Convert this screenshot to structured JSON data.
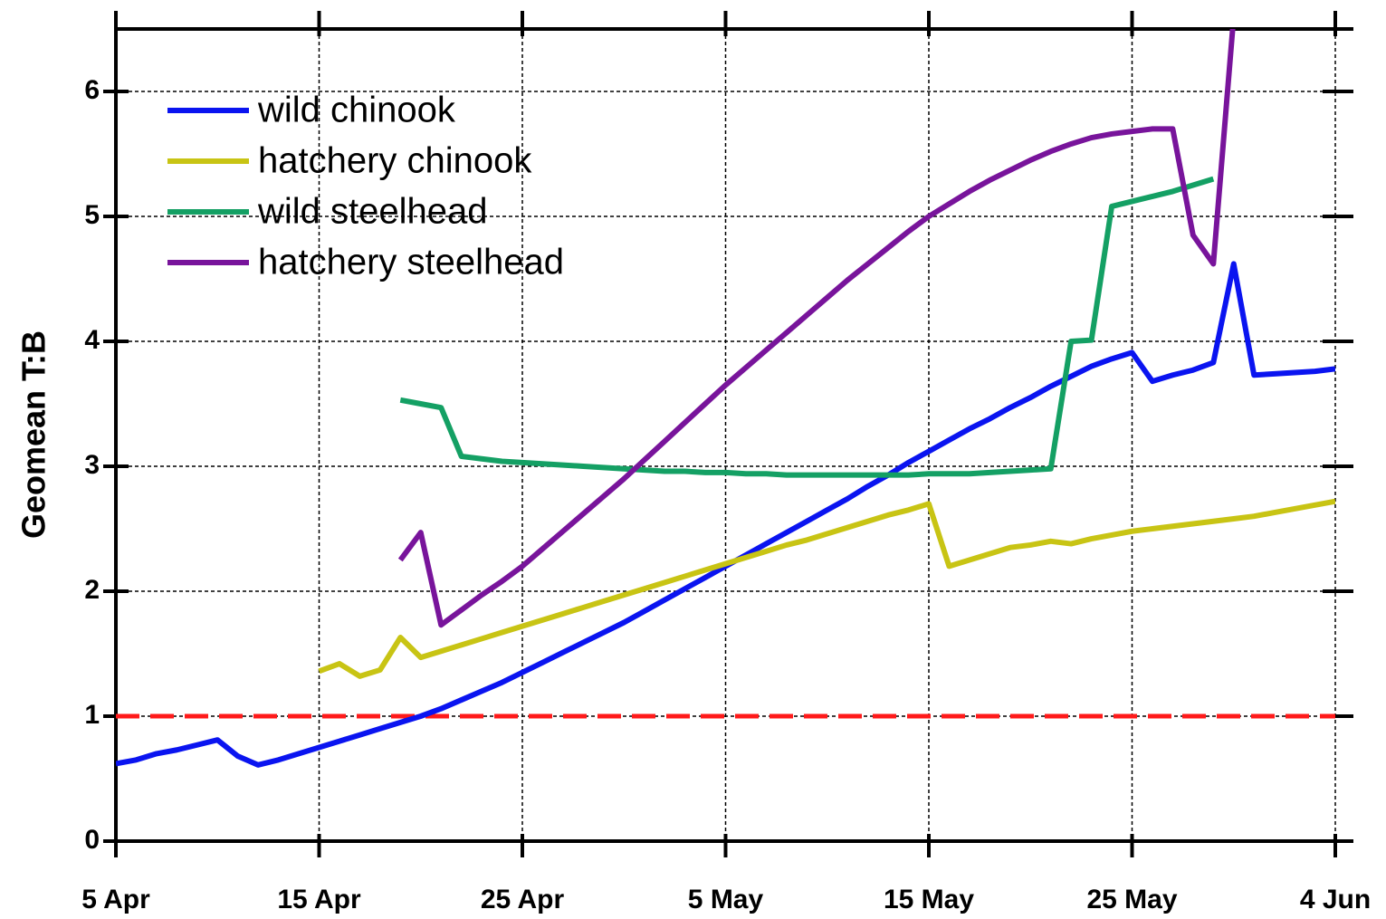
{
  "chart_data": {
    "type": "line",
    "y_label": "Geomean T:B",
    "x": [
      0,
      1,
      2,
      3,
      4,
      5,
      6,
      7,
      8,
      9,
      10,
      11,
      12,
      13,
      14,
      15,
      16,
      17,
      18,
      19,
      20,
      21,
      22,
      23,
      24,
      25,
      26,
      27,
      28,
      29,
      30,
      31,
      32,
      33,
      34,
      35,
      36,
      37,
      38,
      39,
      40,
      41,
      42,
      43,
      44,
      45,
      46,
      47,
      48,
      49,
      50,
      51,
      52,
      53,
      54,
      55,
      56,
      57,
      58,
      59,
      60
    ],
    "xlim": [
      0,
      60
    ],
    "xticks": [
      {
        "value": 0,
        "label": "5 Apr"
      },
      {
        "value": 10,
        "label": "15 Apr"
      },
      {
        "value": 20,
        "label": "25 Apr"
      },
      {
        "value": 30,
        "label": "5 May"
      },
      {
        "value": 40,
        "label": "15 May"
      },
      {
        "value": 50,
        "label": "25 May"
      },
      {
        "value": 60,
        "label": "4 Jun"
      }
    ],
    "ylim": [
      0,
      6.5
    ],
    "yticks": [
      0,
      1,
      2,
      3,
      4,
      5,
      6
    ],
    "grid": true,
    "legend": "upper-left",
    "reference_line": {
      "value": 1,
      "color": "#ff1a1a"
    },
    "series": [
      {
        "name": "wild chinook",
        "color": "#0a14f0",
        "values": [
          0.62,
          0.65,
          0.7,
          0.73,
          0.77,
          0.81,
          0.68,
          0.61,
          0.65,
          0.7,
          0.75,
          0.8,
          0.85,
          0.9,
          0.95,
          1.0,
          1.06,
          1.13,
          1.2,
          1.27,
          1.35,
          1.43,
          1.51,
          1.59,
          1.67,
          1.75,
          1.84,
          1.93,
          2.02,
          2.11,
          2.2,
          2.29,
          2.38,
          2.47,
          2.56,
          2.65,
          2.74,
          2.84,
          2.93,
          3.03,
          3.12,
          3.21,
          3.3,
          3.38,
          3.47,
          3.55,
          3.64,
          3.72,
          3.8,
          3.86,
          3.91,
          3.68,
          3.73,
          3.77,
          3.83,
          4.62,
          3.73,
          3.74,
          3.75,
          3.76,
          3.78
        ]
      },
      {
        "name": "hatchery chinook",
        "color": "#c8c414",
        "values": [
          null,
          null,
          null,
          null,
          null,
          null,
          null,
          null,
          null,
          null,
          1.36,
          1.42,
          1.32,
          1.37,
          1.63,
          1.47,
          1.52,
          1.57,
          1.62,
          1.67,
          1.72,
          1.77,
          1.82,
          1.87,
          1.92,
          1.97,
          2.02,
          2.07,
          2.12,
          2.17,
          2.22,
          2.27,
          2.32,
          2.37,
          2.41,
          2.46,
          2.51,
          2.56,
          2.61,
          2.65,
          2.7,
          2.2,
          2.25,
          2.3,
          2.35,
          2.37,
          2.4,
          2.38,
          2.42,
          2.45,
          2.48,
          2.5,
          2.52,
          2.54,
          2.56,
          2.58,
          2.6,
          2.63,
          2.66,
          2.69,
          2.72
        ]
      },
      {
        "name": "wild steelhead",
        "color": "#14a064",
        "values": [
          null,
          null,
          null,
          null,
          null,
          null,
          null,
          null,
          null,
          null,
          null,
          null,
          null,
          null,
          3.53,
          3.5,
          3.47,
          3.08,
          3.06,
          3.04,
          3.03,
          3.02,
          3.01,
          3.0,
          2.99,
          2.98,
          2.97,
          2.96,
          2.96,
          2.95,
          2.95,
          2.94,
          2.94,
          2.93,
          2.93,
          2.93,
          2.93,
          2.93,
          2.93,
          2.93,
          2.94,
          2.94,
          2.94,
          2.95,
          2.96,
          2.97,
          2.98,
          4.0,
          4.01,
          5.08,
          5.12,
          5.16,
          5.2,
          5.25,
          5.3,
          null,
          null,
          null,
          null,
          null,
          null
        ]
      },
      {
        "name": "hatchery steelhead",
        "color": "#78149b",
        "values": [
          null,
          null,
          null,
          null,
          null,
          null,
          null,
          null,
          null,
          null,
          null,
          null,
          null,
          null,
          2.25,
          2.47,
          1.73,
          1.85,
          1.97,
          2.08,
          2.2,
          2.34,
          2.48,
          2.62,
          2.76,
          2.9,
          3.05,
          3.2,
          3.35,
          3.5,
          3.65,
          3.79,
          3.93,
          4.07,
          4.21,
          4.35,
          4.49,
          4.62,
          4.75,
          4.88,
          5.0,
          5.1,
          5.2,
          5.29,
          5.37,
          5.45,
          5.52,
          5.58,
          5.63,
          5.66,
          5.68,
          5.7,
          5.7,
          4.85,
          4.62,
          6.6,
          null,
          null,
          null,
          null,
          null
        ]
      }
    ]
  }
}
